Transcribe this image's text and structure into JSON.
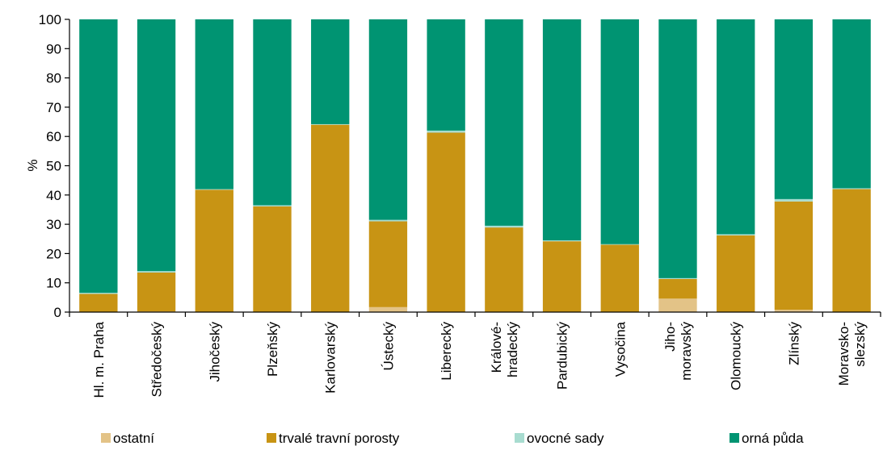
{
  "chart_data": {
    "type": "bar",
    "stacked": true,
    "title": "",
    "xlabel": "",
    "ylabel": "%",
    "ylim": [
      0,
      100
    ],
    "yticks": [
      0,
      10,
      20,
      30,
      40,
      50,
      60,
      70,
      80,
      90,
      100
    ],
    "grid": false,
    "legend_position": "bottom",
    "categories": [
      [
        "Hl. m. Praha"
      ],
      [
        "Středočeský"
      ],
      [
        "Jihočeský"
      ],
      [
        "Plzeňský"
      ],
      [
        "Karlovarský"
      ],
      [
        "Ústecký"
      ],
      [
        "Liberecký"
      ],
      [
        "Králové-",
        "hradecký"
      ],
      [
        "Pardubický"
      ],
      [
        "Vysočina"
      ],
      [
        "Jiho-",
        "moravský"
      ],
      [
        "Olomoucký"
      ],
      [
        "Zlínský"
      ],
      [
        "Moravsko-",
        "slezský"
      ]
    ],
    "series": [
      {
        "name": "ostatní",
        "color": "#E3C387",
        "values": [
          0.1,
          0.2,
          0.1,
          0.1,
          0.1,
          1.7,
          0.1,
          0.1,
          0.1,
          0.1,
          4.6,
          0.1,
          0.8,
          0.1
        ]
      },
      {
        "name": "trvalé travní porosty",
        "color": "#C89414",
        "values": [
          6.1,
          13.3,
          41.7,
          36.0,
          63.9,
          29.3,
          61.2,
          28.8,
          24.1,
          22.9,
          6.7,
          26.1,
          37.0,
          41.9
        ]
      },
      {
        "name": "ovocné sady",
        "color": "#A8DCD0",
        "values": [
          0.4,
          0.5,
          0.2,
          0.4,
          0.2,
          0.5,
          0.7,
          0.6,
          0.3,
          0.2,
          0.3,
          0.4,
          0.8,
          0.3
        ]
      },
      {
        "name": "orná půda",
        "color": "#009472",
        "values": [
          93.4,
          86.0,
          58.0,
          63.5,
          35.8,
          68.5,
          38.0,
          70.5,
          75.5,
          76.8,
          88.4,
          73.4,
          61.4,
          57.7
        ]
      }
    ]
  }
}
